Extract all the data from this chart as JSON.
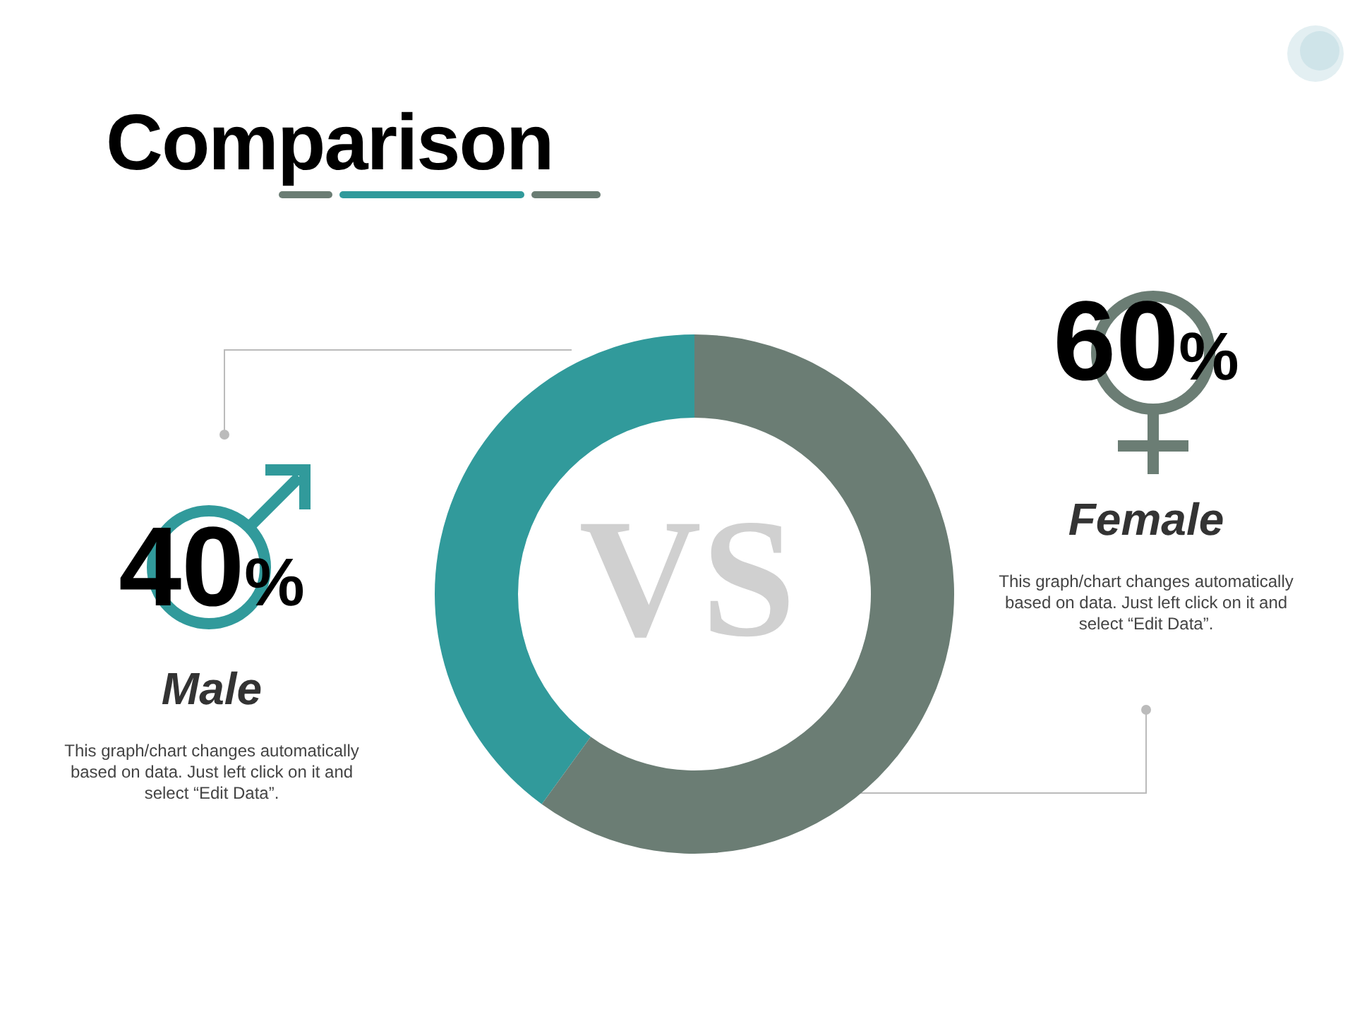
{
  "chart_data": {
    "type": "donut",
    "title": "Comparison",
    "categories": [
      "Male",
      "Female"
    ],
    "values": [
      40,
      60
    ],
    "value_labels": [
      "40%",
      "60%"
    ],
    "colors": [
      "#319a9b",
      "#6b7d74"
    ],
    "annotations": [
      "VS",
      "This graph/chart changes automatically based on data. Just left click on it and select “Edit Data”.",
      "This graph/chart changes automatically based on data. Just left click on it and select “Edit Data”."
    ]
  }
}
